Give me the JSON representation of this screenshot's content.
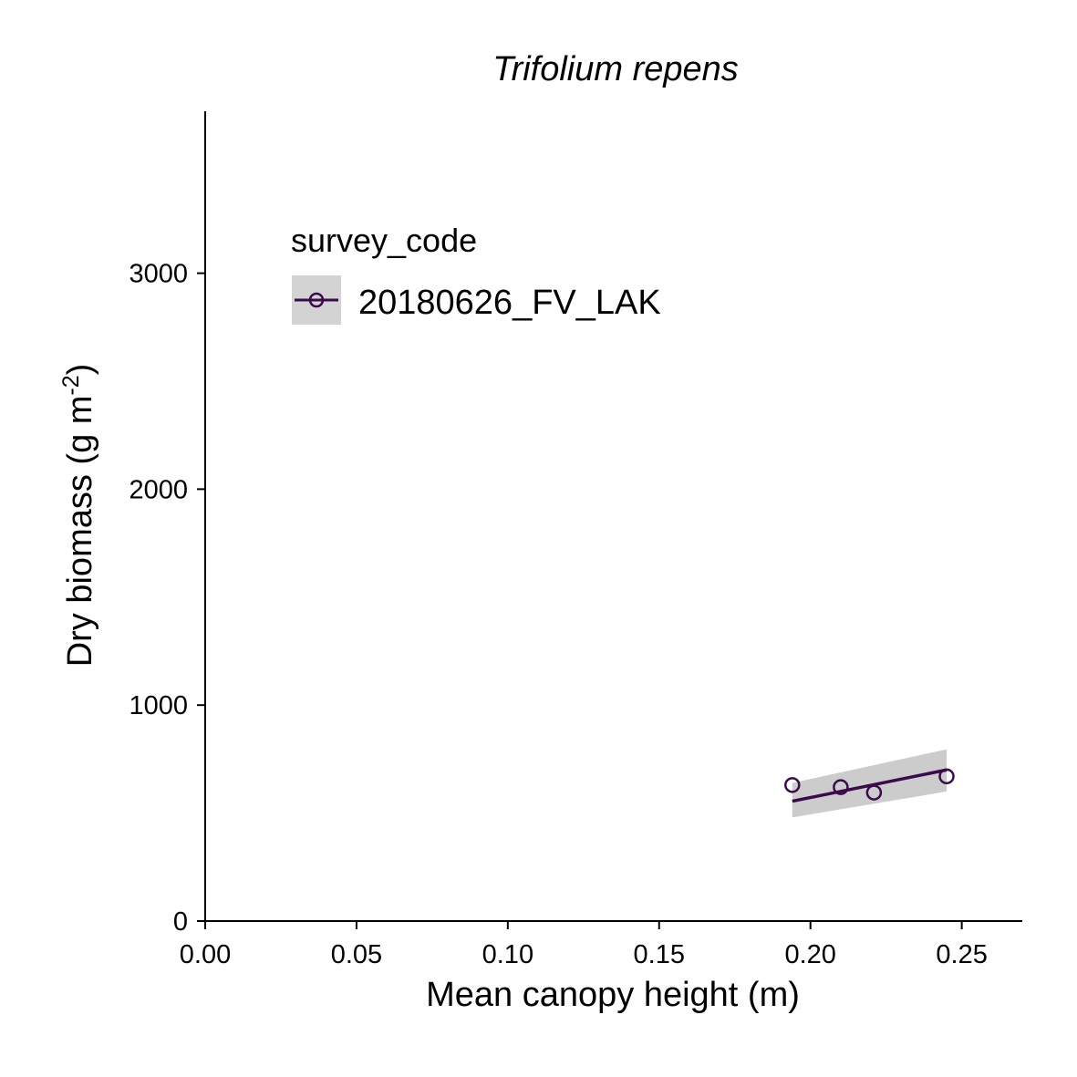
{
  "chart_data": {
    "type": "scatter",
    "title": "Trifolium repens",
    "xlabel": "Mean canopy height (m)",
    "ylabel_main": "Dry biomass (g m",
    "ylabel_sup": "-2",
    "ylabel_close": ")",
    "xlim": [
      0,
      0.27
    ],
    "ylim": [
      0,
      3750
    ],
    "x_ticks": [
      0.0,
      0.05,
      0.1,
      0.15,
      0.2,
      0.25
    ],
    "x_tick_labels": [
      "0.00",
      "0.05",
      "0.10",
      "0.15",
      "0.20",
      "0.25"
    ],
    "y_ticks": [
      0,
      1000,
      2000,
      3000
    ],
    "y_tick_labels": [
      "0",
      "1000",
      "2000",
      "3000"
    ],
    "legend": {
      "title": "survey_code",
      "entries": [
        "20180626_FV_LAK"
      ]
    },
    "series": [
      {
        "name": "20180626_FV_LAK",
        "color": "#3a0a4a",
        "points": [
          {
            "x": 0.194,
            "y": 630
          },
          {
            "x": 0.21,
            "y": 620
          },
          {
            "x": 0.221,
            "y": 595
          },
          {
            "x": 0.245,
            "y": 670
          }
        ],
        "fit": {
          "x": [
            0.194,
            0.245
          ],
          "y": [
            555,
            700
          ],
          "lower": [
            480,
            600
          ],
          "upper": [
            640,
            795
          ]
        },
        "band_color": "#cccccc"
      }
    ]
  }
}
